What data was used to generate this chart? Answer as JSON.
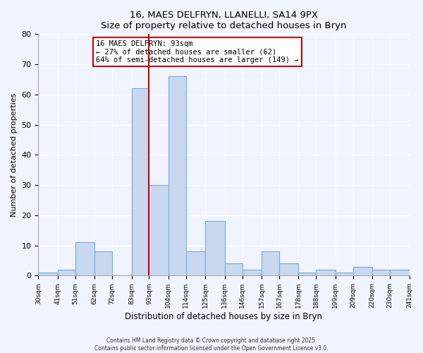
{
  "title1": "16, MAES DELFRYN, LLANELLI, SA14 9PX",
  "title2": "Size of property relative to detached houses in Bryn",
  "xlabel": "Distribution of detached houses by size in Bryn",
  "ylabel": "Number of detached properties",
  "bins": [
    30,
    41,
    51,
    62,
    72,
    83,
    93,
    104,
    114,
    125,
    136,
    146,
    157,
    167,
    178,
    188,
    199,
    209,
    220,
    230,
    241
  ],
  "counts": [
    1,
    2,
    11,
    8,
    0,
    62,
    30,
    66,
    8,
    18,
    4,
    2,
    8,
    4,
    1,
    2,
    1,
    3,
    2,
    2
  ],
  "bar_color": "#c8d8f0",
  "bar_edgecolor": "#7aa8d8",
  "property_line_x": 93,
  "property_line_color": "#cc0000",
  "annotation_text": "16 MAES DELFRYN: 93sqm\n← 27% of detached houses are smaller (62)\n64% of semi-detached houses are larger (149) →",
  "annotation_box_color": "white",
  "annotation_box_edgecolor": "#cc0000",
  "ylim": [
    0,
    80
  ],
  "yticks": [
    0,
    10,
    20,
    30,
    40,
    50,
    60,
    70,
    80
  ],
  "footer1": "Contains HM Land Registry data © Crown copyright and database right 2025.",
  "footer2": "Contains public sector information licensed under the Open Government Licence v3.0.",
  "bg_color": "#f0f4ff"
}
